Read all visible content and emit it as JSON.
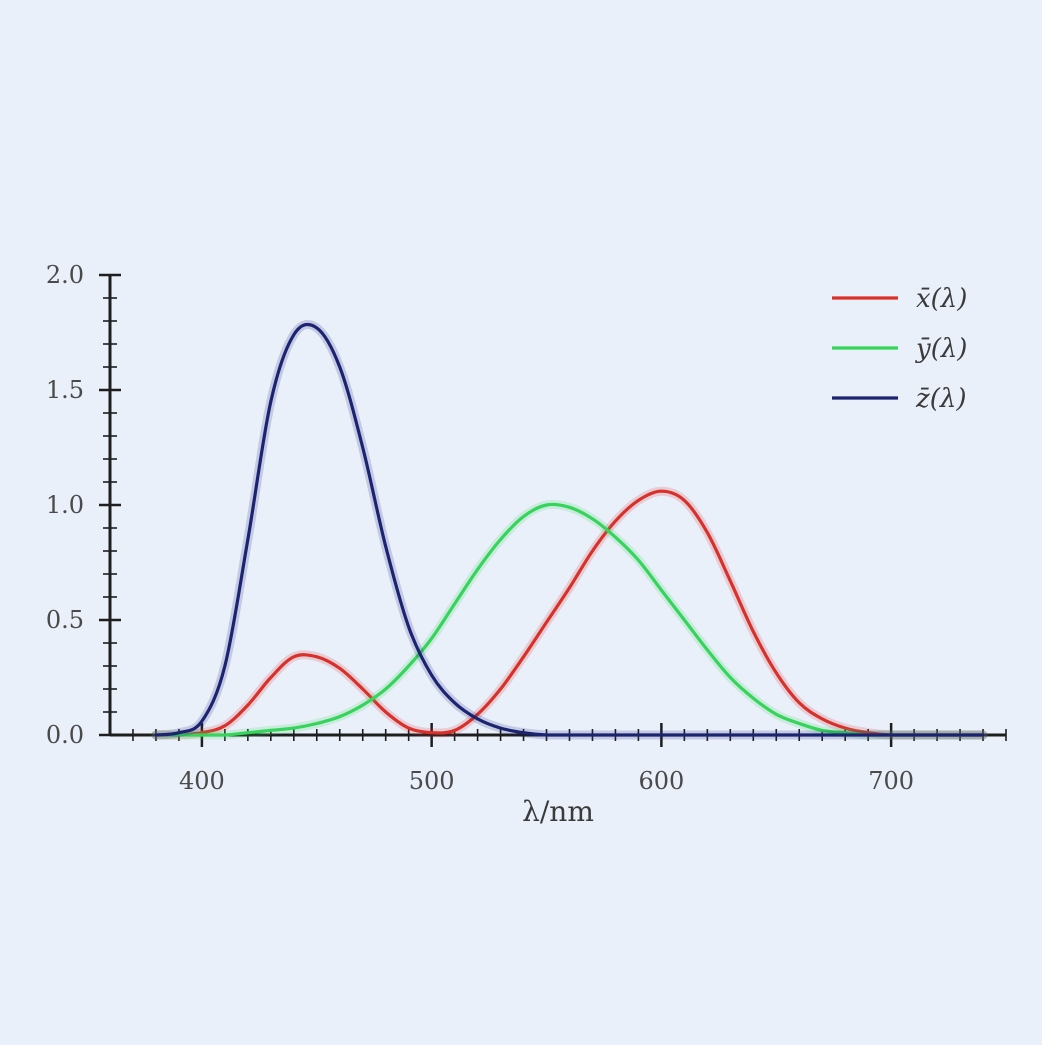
{
  "chart_data": {
    "type": "line",
    "xlabel": "λ/nm",
    "ylabel": "",
    "xlim": [
      360,
      750
    ],
    "ylim": [
      0,
      2.0
    ],
    "x_ticks": [
      400,
      500,
      600,
      700
    ],
    "y_ticks": [
      0.0,
      0.5,
      1.0,
      1.5,
      2.0
    ],
    "y_tick_labels": [
      "0.0",
      "0.5",
      "1.0",
      "1.5",
      "2.0"
    ],
    "legend_position": "top-right",
    "grid": false,
    "x": [
      380,
      390,
      400,
      410,
      420,
      430,
      440,
      450,
      460,
      470,
      480,
      490,
      500,
      510,
      520,
      530,
      540,
      550,
      560,
      570,
      580,
      590,
      600,
      610,
      620,
      630,
      640,
      650,
      660,
      670,
      680,
      690,
      700,
      710,
      720,
      730,
      740
    ],
    "series": [
      {
        "name": "x̄(λ)",
        "color": "#d9302a",
        "values": [
          0.0,
          0.0,
          0.01,
          0.04,
          0.13,
          0.25,
          0.34,
          0.34,
          0.29,
          0.2,
          0.1,
          0.03,
          0.01,
          0.02,
          0.09,
          0.2,
          0.34,
          0.49,
          0.64,
          0.8,
          0.93,
          1.02,
          1.06,
          1.02,
          0.88,
          0.67,
          0.45,
          0.27,
          0.14,
          0.07,
          0.03,
          0.01,
          0.0,
          0.0,
          0.0,
          0.0,
          0.0
        ]
      },
      {
        "name": "ȳ(λ)",
        "color": "#35d45a",
        "values": [
          0.0,
          0.0,
          0.0,
          0.0,
          0.01,
          0.02,
          0.03,
          0.05,
          0.08,
          0.13,
          0.2,
          0.3,
          0.42,
          0.57,
          0.72,
          0.85,
          0.95,
          1.0,
          0.99,
          0.94,
          0.86,
          0.76,
          0.63,
          0.5,
          0.37,
          0.25,
          0.16,
          0.09,
          0.05,
          0.02,
          0.01,
          0.0,
          0.0,
          0.0,
          0.0,
          0.0,
          0.0
        ]
      },
      {
        "name": "z̄(λ)",
        "color": "#1c2472",
        "values": [
          0.0,
          0.01,
          0.06,
          0.3,
          0.85,
          1.45,
          1.74,
          1.77,
          1.6,
          1.25,
          0.82,
          0.47,
          0.26,
          0.14,
          0.07,
          0.03,
          0.01,
          0.0,
          0.0,
          0.0,
          0.0,
          0.0,
          0.0,
          0.0,
          0.0,
          0.0,
          0.0,
          0.0,
          0.0,
          0.0,
          0.0,
          0.0,
          0.0,
          0.0,
          0.0,
          0.0,
          0.0
        ]
      }
    ]
  }
}
